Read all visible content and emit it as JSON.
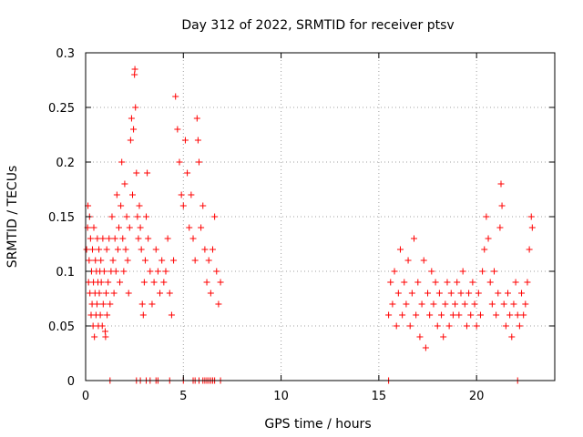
{
  "chart_data": {
    "type": "scatter",
    "title": "Day 312 of 2022, SRMTID for receiver ptsv",
    "xlabel": "GPS time / hours",
    "ylabel": "SRMTID / TECUs",
    "xlim": [
      0,
      24
    ],
    "ylim": [
      0,
      0.3
    ],
    "xticks": [
      0,
      5,
      10,
      15,
      20
    ],
    "xtick_labels": [
      "0",
      "5",
      "10",
      "15",
      "20"
    ],
    "yticks": [
      0,
      0.05,
      0.1,
      0.15,
      0.2,
      0.25,
      0.3
    ],
    "ytick_labels": [
      "0",
      "0.05",
      "0.1",
      "0.15",
      "0.2",
      "0.25",
      "0.3"
    ],
    "grid": true,
    "marker": "+",
    "color": "#ff0000",
    "series": [
      {
        "name": "SRMTID",
        "points": [
          [
            0.05,
            0.12
          ],
          [
            0.1,
            0.14
          ],
          [
            0.12,
            0.16
          ],
          [
            0.15,
            0.09
          ],
          [
            0.18,
            0.11
          ],
          [
            0.2,
            0.15
          ],
          [
            0.22,
            0.08
          ],
          [
            0.25,
            0.13
          ],
          [
            0.28,
            0.06
          ],
          [
            0.3,
            0.1
          ],
          [
            0.33,
            0.07
          ],
          [
            0.35,
            0.12
          ],
          [
            0.38,
            0.05
          ],
          [
            0.4,
            0.09
          ],
          [
            0.42,
            0.14
          ],
          [
            0.45,
            0.04
          ],
          [
            0.48,
            0.08
          ],
          [
            0.5,
            0.11
          ],
          [
            0.53,
            0.06
          ],
          [
            0.55,
            0.1
          ],
          [
            0.58,
            0.07
          ],
          [
            0.6,
            0.13
          ],
          [
            0.63,
            0.09
          ],
          [
            0.65,
            0.05
          ],
          [
            0.68,
            0.12
          ],
          [
            0.7,
            0.08
          ],
          [
            0.73,
            0.1
          ],
          [
            0.75,
            0.06
          ],
          [
            0.78,
            0.11
          ],
          [
            0.8,
            0.09
          ],
          [
            0.85,
            0.05
          ],
          [
            0.88,
            0.13
          ],
          [
            0.9,
            0.07
          ],
          [
            0.95,
            0.1
          ],
          [
            1.0,
            0.045
          ],
          [
            1.02,
            0.04
          ],
          [
            1.05,
            0.08
          ],
          [
            1.08,
            0.12
          ],
          [
            1.1,
            0.06
          ],
          [
            1.15,
            0.09
          ],
          [
            1.2,
            0.13
          ],
          [
            1.25,
            0.07
          ],
          [
            1.3,
            0.1
          ],
          [
            1.35,
            0.15
          ],
          [
            1.4,
            0.11
          ],
          [
            1.45,
            0.08
          ],
          [
            1.5,
            0.13
          ],
          [
            1.55,
            0.1
          ],
          [
            1.6,
            0.17
          ],
          [
            1.65,
            0.12
          ],
          [
            1.7,
            0.14
          ],
          [
            1.75,
            0.09
          ],
          [
            1.8,
            0.16
          ],
          [
            1.85,
            0.2
          ],
          [
            1.9,
            0.13
          ],
          [
            1.95,
            0.1
          ],
          [
            2.0,
            0.18
          ],
          [
            2.05,
            0.12
          ],
          [
            2.1,
            0.15
          ],
          [
            2.15,
            0.11
          ],
          [
            2.2,
            0.08
          ],
          [
            2.25,
            0.14
          ],
          [
            2.3,
            0.22
          ],
          [
            2.35,
            0.24
          ],
          [
            2.4,
            0.17
          ],
          [
            2.45,
            0.23
          ],
          [
            2.5,
            0.28
          ],
          [
            2.52,
            0.285
          ],
          [
            2.55,
            0.25
          ],
          [
            2.6,
            0.19
          ],
          [
            2.65,
            0.15
          ],
          [
            2.7,
            0.13
          ],
          [
            2.75,
            0.16
          ],
          [
            2.8,
            0.14
          ],
          [
            2.85,
            0.12
          ],
          [
            2.9,
            0.07
          ],
          [
            2.95,
            0.06
          ],
          [
            3.0,
            0.09
          ],
          [
            3.05,
            0.11
          ],
          [
            3.1,
            0.15
          ],
          [
            3.15,
            0.19
          ],
          [
            3.2,
            0.13
          ],
          [
            3.3,
            0.1
          ],
          [
            3.4,
            0.07
          ],
          [
            3.5,
            0.09
          ],
          [
            3.6,
            0.12
          ],
          [
            3.7,
            0.1
          ],
          [
            3.8,
            0.08
          ],
          [
            3.9,
            0.11
          ],
          [
            4.0,
            0.09
          ],
          [
            4.1,
            0.1
          ],
          [
            4.2,
            0.13
          ],
          [
            4.3,
            0.08
          ],
          [
            4.4,
            0.06
          ],
          [
            4.5,
            0.11
          ],
          [
            4.6,
            0.26
          ],
          [
            4.7,
            0.23
          ],
          [
            4.8,
            0.2
          ],
          [
            4.9,
            0.17
          ],
          [
            5.0,
            0.16
          ],
          [
            5.1,
            0.22
          ],
          [
            5.2,
            0.19
          ],
          [
            5.3,
            0.14
          ],
          [
            5.4,
            0.17
          ],
          [
            5.5,
            0.13
          ],
          [
            5.6,
            0.11
          ],
          [
            5.7,
            0.24
          ],
          [
            5.75,
            0.22
          ],
          [
            5.8,
            0.2
          ],
          [
            5.9,
            0.14
          ],
          [
            6.0,
            0.16
          ],
          [
            6.1,
            0.12
          ],
          [
            6.2,
            0.09
          ],
          [
            6.3,
            0.11
          ],
          [
            6.4,
            0.08
          ],
          [
            6.5,
            0.12
          ],
          [
            6.6,
            0.15
          ],
          [
            6.7,
            0.1
          ],
          [
            6.8,
            0.07
          ],
          [
            6.9,
            0.09
          ],
          [
            15.5,
            0.06
          ],
          [
            15.6,
            0.09
          ],
          [
            15.7,
            0.07
          ],
          [
            15.8,
            0.1
          ],
          [
            15.9,
            0.05
          ],
          [
            16.0,
            0.08
          ],
          [
            16.1,
            0.12
          ],
          [
            16.2,
            0.06
          ],
          [
            16.3,
            0.09
          ],
          [
            16.4,
            0.07
          ],
          [
            16.5,
            0.11
          ],
          [
            16.6,
            0.05
          ],
          [
            16.7,
            0.08
          ],
          [
            16.8,
            0.13
          ],
          [
            16.9,
            0.06
          ],
          [
            17.0,
            0.09
          ],
          [
            17.1,
            0.04
          ],
          [
            17.2,
            0.07
          ],
          [
            17.3,
            0.11
          ],
          [
            17.4,
            0.03
          ],
          [
            17.5,
            0.08
          ],
          [
            17.6,
            0.06
          ],
          [
            17.7,
            0.1
          ],
          [
            17.8,
            0.07
          ],
          [
            17.9,
            0.09
          ],
          [
            18.0,
            0.05
          ],
          [
            18.1,
            0.08
          ],
          [
            18.2,
            0.06
          ],
          [
            18.3,
            0.04
          ],
          [
            18.4,
            0.07
          ],
          [
            18.5,
            0.09
          ],
          [
            18.6,
            0.05
          ],
          [
            18.7,
            0.08
          ],
          [
            18.8,
            0.06
          ],
          [
            18.9,
            0.07
          ],
          [
            19.0,
            0.09
          ],
          [
            19.1,
            0.06
          ],
          [
            19.2,
            0.08
          ],
          [
            19.3,
            0.1
          ],
          [
            19.4,
            0.07
          ],
          [
            19.5,
            0.05
          ],
          [
            19.6,
            0.08
          ],
          [
            19.7,
            0.06
          ],
          [
            19.8,
            0.09
          ],
          [
            19.9,
            0.07
          ],
          [
            20.0,
            0.05
          ],
          [
            20.1,
            0.08
          ],
          [
            20.2,
            0.06
          ],
          [
            20.3,
            0.1
          ],
          [
            20.4,
            0.12
          ],
          [
            20.5,
            0.15
          ],
          [
            20.6,
            0.13
          ],
          [
            20.7,
            0.09
          ],
          [
            20.8,
            0.07
          ],
          [
            20.9,
            0.1
          ],
          [
            21.0,
            0.06
          ],
          [
            21.1,
            0.08
          ],
          [
            21.2,
            0.14
          ],
          [
            21.25,
            0.18
          ],
          [
            21.3,
            0.16
          ],
          [
            21.4,
            0.07
          ],
          [
            21.5,
            0.05
          ],
          [
            21.6,
            0.08
          ],
          [
            21.7,
            0.06
          ],
          [
            21.8,
            0.04
          ],
          [
            21.9,
            0.07
          ],
          [
            22.0,
            0.09
          ],
          [
            22.1,
            0.06
          ],
          [
            22.2,
            0.05
          ],
          [
            22.3,
            0.08
          ],
          [
            22.4,
            0.06
          ],
          [
            22.5,
            0.07
          ],
          [
            22.6,
            0.09
          ],
          [
            22.7,
            0.12
          ],
          [
            22.8,
            0.15
          ],
          [
            22.85,
            0.14
          ]
        ]
      }
    ],
    "zero_points_x": [
      1.25,
      2.6,
      2.8,
      3.1,
      3.3,
      3.6,
      3.7,
      4.3,
      5.0,
      5.5,
      5.6,
      5.8,
      6.0,
      6.1,
      6.2,
      6.3,
      6.4,
      6.5,
      6.6,
      6.9,
      15.5,
      22.1
    ]
  }
}
